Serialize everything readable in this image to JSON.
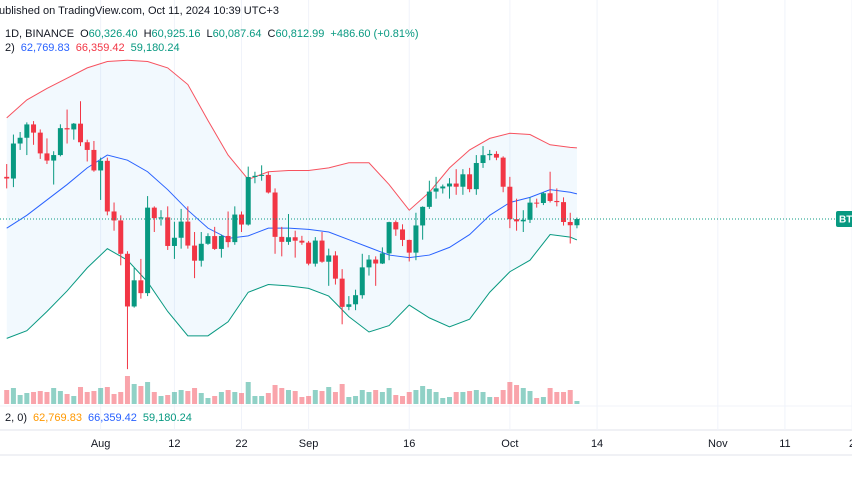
{
  "header": {
    "published": "ublished on TradingView.com, Oct 11, 2024 10:39 UTC+3"
  },
  "legend": {
    "symbol": "1D, BINANCE",
    "ohlc": [
      {
        "label": "O",
        "value": "60,326.40"
      },
      {
        "label": "H",
        "value": "60,925.16"
      },
      {
        "label": "L",
        "value": "60,087.64"
      },
      {
        "label": "C",
        "value": "60,812.99"
      }
    ],
    "change": "+486.60 (+0.81%)",
    "value_color": "#089981"
  },
  "indicator": {
    "params": "2)",
    "values": [
      {
        "text": "62,769.83",
        "color": "#2962ff"
      },
      {
        "text": "66,359.42",
        "color": "#f23645"
      },
      {
        "text": "59,180.24",
        "color": "#089981"
      }
    ]
  },
  "lower_indicator": {
    "params": "2, 0)",
    "values": [
      {
        "text": "62,769.83",
        "color": "#ff9800"
      },
      {
        "text": "66,359.42",
        "color": "#2962ff"
      },
      {
        "text": "59,180.24",
        "color": "#089981"
      }
    ]
  },
  "chart_data": {
    "type": "candlestick",
    "x": [
      "2024-07-18",
      "2024-07-19",
      "2024-07-20",
      "2024-07-21",
      "2024-07-22",
      "2024-07-23",
      "2024-07-24",
      "2024-07-25",
      "2024-07-26",
      "2024-07-27",
      "2024-07-28",
      "2024-07-29",
      "2024-07-30",
      "2024-07-31",
      "2024-08-01",
      "2024-08-02",
      "2024-08-03",
      "2024-08-04",
      "2024-08-05",
      "2024-08-06",
      "2024-08-07",
      "2024-08-08",
      "2024-08-09",
      "2024-08-10",
      "2024-08-11",
      "2024-08-12",
      "2024-08-13",
      "2024-08-14",
      "2024-08-15",
      "2024-08-16",
      "2024-08-17",
      "2024-08-18",
      "2024-08-19",
      "2024-08-20",
      "2024-08-21",
      "2024-08-22",
      "2024-08-23",
      "2024-08-24",
      "2024-08-25",
      "2024-08-26",
      "2024-08-27",
      "2024-08-28",
      "2024-08-29",
      "2024-08-30",
      "2024-08-31",
      "2024-09-01",
      "2024-09-02",
      "2024-09-03",
      "2024-09-04",
      "2024-09-05",
      "2024-09-06",
      "2024-09-07",
      "2024-09-08",
      "2024-09-09",
      "2024-09-10",
      "2024-09-11",
      "2024-09-12",
      "2024-09-13",
      "2024-09-14",
      "2024-09-15",
      "2024-09-16",
      "2024-09-17",
      "2024-09-18",
      "2024-09-19",
      "2024-09-20",
      "2024-09-21",
      "2024-09-22",
      "2024-09-23",
      "2024-09-24",
      "2024-09-25",
      "2024-09-26",
      "2024-09-27",
      "2024-09-28",
      "2024-09-29",
      "2024-09-30",
      "2024-10-01",
      "2024-10-02",
      "2024-10-03",
      "2024-10-04",
      "2024-10-05",
      "2024-10-06",
      "2024-10-07",
      "2024-10-08",
      "2024-10-09",
      "2024-10-10",
      "2024-10-11"
    ],
    "open": [
      64100,
      63970,
      66700,
      67150,
      68190,
      67550,
      65930,
      65370,
      65800,
      67900,
      67800,
      68250,
      66800,
      66200,
      64600,
      65350,
      61400,
      60700,
      58100,
      53990,
      56030,
      55030,
      61700,
      60880,
      60940,
      58710,
      59350,
      60610,
      58740,
      57560,
      58880,
      59480,
      58480,
      59490,
      59010,
      61160,
      60380,
      64090,
      64180,
      64250,
      62880,
      59420,
      59030,
      59390,
      59120,
      58970,
      57330,
      59130,
      57480,
      57970,
      56160,
      53960,
      54160,
      54870,
      57040,
      57650,
      57340,
      58130,
      60570,
      60000,
      59180,
      58190,
      60310,
      61760,
      62950,
      63200,
      63350,
      63580,
      63330,
      64300,
      63140,
      65180,
      65790,
      65890,
      65600,
      63330,
      60800,
      60630,
      60750,
      62090,
      62060,
      62820,
      62220,
      62130,
      60580,
      60326.4
    ],
    "high": [
      65100,
      67400,
      67600,
      68350,
      68450,
      67800,
      67100,
      66100,
      68200,
      69350,
      68300,
      70000,
      67000,
      66900,
      65600,
      65600,
      62100,
      61100,
      58300,
      57000,
      57700,
      62600,
      61800,
      61500,
      61800,
      60600,
      61600,
      61800,
      59800,
      59800,
      59700,
      60200,
      59600,
      61400,
      61800,
      61400,
      64900,
      64500,
      65000,
      64500,
      63200,
      60200,
      61200,
      59900,
      59500,
      59100,
      59400,
      59800,
      58500,
      58300,
      56900,
      54800,
      55300,
      58100,
      58000,
      57900,
      58600,
      60600,
      60700,
      60400,
      59200,
      61300,
      61800,
      63800,
      64100,
      63500,
      64000,
      64700,
      64700,
      64800,
      65800,
      66500,
      66200,
      66100,
      65700,
      64100,
      62400,
      61500,
      62500,
      62400,
      62900,
      64500,
      63200,
      62500,
      61300,
      60925.16
    ],
    "low": [
      63200,
      63300,
      66200,
      65800,
      66600,
      65500,
      65100,
      63500,
      65700,
      66700,
      67000,
      66500,
      65300,
      64500,
      62300,
      61100,
      59900,
      57200,
      49100,
      53900,
      54600,
      54800,
      59800,
      60300,
      58400,
      57700,
      58500,
      58500,
      56200,
      57100,
      58800,
      58400,
      57800,
      58600,
      58800,
      59800,
      60300,
      63600,
      63800,
      62800,
      58100,
      57900,
      58800,
      57800,
      58800,
      57200,
      57100,
      57400,
      55600,
      55700,
      52600,
      53700,
      53700,
      54600,
      56400,
      55600,
      57300,
      57600,
      59500,
      58700,
      57500,
      57600,
      59200,
      61600,
      62400,
      62800,
      62400,
      62700,
      62700,
      62900,
      62700,
      64800,
      65400,
      65400,
      62900,
      60100,
      59900,
      59800,
      60500,
      61700,
      61900,
      62100,
      61800,
      60300,
      58900,
      60087.64
    ],
    "close": [
      63970,
      66700,
      67150,
      68190,
      67550,
      65930,
      65370,
      65800,
      67900,
      67800,
      68250,
      66800,
      66200,
      64600,
      65350,
      61400,
      60700,
      58100,
      53990,
      56030,
      55030,
      61700,
      60880,
      60940,
      58710,
      59350,
      60610,
      58740,
      57560,
      58880,
      59480,
      58480,
      59490,
      59010,
      61160,
      60380,
      64090,
      64180,
      64250,
      62880,
      59420,
      59030,
      59390,
      59120,
      58970,
      57330,
      59130,
      57480,
      57970,
      56160,
      53960,
      54160,
      54870,
      57040,
      57650,
      57340,
      58130,
      60570,
      60000,
      59180,
      58190,
      60310,
      61760,
      62950,
      63200,
      63350,
      63580,
      63330,
      64300,
      63140,
      65180,
      65790,
      65890,
      65600,
      63330,
      60800,
      60630,
      60750,
      62090,
      62060,
      62820,
      62220,
      62130,
      60580,
      60326.4,
      60812.99
    ],
    "volume": [
      14,
      16,
      9,
      11,
      12,
      13,
      12,
      16,
      13,
      10,
      8,
      17,
      12,
      13,
      16,
      17,
      10,
      12,
      28,
      20,
      18,
      22,
      12,
      8,
      9,
      12,
      14,
      13,
      16,
      11,
      6,
      8,
      12,
      14,
      12,
      11,
      22,
      8,
      8,
      11,
      19,
      16,
      14,
      13,
      7,
      8,
      14,
      13,
      17,
      12,
      20,
      7,
      8,
      14,
      12,
      14,
      12,
      16,
      9,
      8,
      12,
      14,
      18,
      15,
      12,
      6,
      7,
      12,
      12,
      13,
      14,
      12,
      7,
      7,
      14,
      22,
      19,
      16,
      13,
      6,
      7,
      16,
      12,
      12,
      14,
      3
    ],
    "vlim": [
      0,
      100
    ],
    "up_color": "#089981",
    "down_color": "#f23645",
    "bollinger": {
      "x": [
        "2024-07-18",
        "2024-07-21",
        "2024-07-24",
        "2024-07-27",
        "2024-07-30",
        "2024-08-02",
        "2024-08-05",
        "2024-08-08",
        "2024-08-11",
        "2024-08-14",
        "2024-08-17",
        "2024-08-20",
        "2024-08-23",
        "2024-08-26",
        "2024-08-29",
        "2024-09-01",
        "2024-09-04",
        "2024-09-07",
        "2024-09-10",
        "2024-09-13",
        "2024-09-16",
        "2024-09-19",
        "2024-09-22",
        "2024-09-25",
        "2024-09-28",
        "2024-10-01",
        "2024-10-04",
        "2024-10-07",
        "2024-10-10",
        "2024-10-11"
      ],
      "upper": [
        68700,
        70100,
        71000,
        71800,
        72600,
        73100,
        73200,
        73100,
        72600,
        71300,
        68500,
        65800,
        63900,
        64500,
        64600,
        64600,
        64800,
        65200,
        65200,
        63500,
        61500,
        62900,
        64800,
        66200,
        67100,
        67500,
        67400,
        66600,
        66400,
        66359.42
      ],
      "basis": [
        60100,
        61100,
        62300,
        63500,
        64800,
        65800,
        65400,
        64500,
        63100,
        61500,
        60100,
        59300,
        59500,
        60100,
        60100,
        60000,
        59800,
        59200,
        58600,
        58000,
        57800,
        58000,
        58600,
        59600,
        61100,
        62100,
        62500,
        63100,
        62900,
        62769.83
      ],
      "lower": [
        51500,
        52100,
        53600,
        55200,
        57000,
        58500,
        57600,
        55900,
        53600,
        51700,
        51700,
        52800,
        55100,
        55700,
        55600,
        55400,
        54800,
        53200,
        52000,
        52500,
        54100,
        53100,
        52400,
        53000,
        55100,
        56700,
        57600,
        59600,
        59400,
        59180.24
      ],
      "upper_color": "#f7525f",
      "basis_color": "#2962ff",
      "lower_color": "#089981",
      "fill": "#2196f3"
    },
    "xlim": [
      "2024-07-17",
      "2024-11-21"
    ],
    "xticks": [
      {
        "value": "2024-08-01",
        "label": "Aug"
      },
      {
        "value": "2024-08-12",
        "label": "12"
      },
      {
        "value": "2024-08-22",
        "label": "22"
      },
      {
        "value": "2024-09-01",
        "label": "Sep"
      },
      {
        "value": "2024-09-16",
        "label": "16"
      },
      {
        "value": "2024-10-01",
        "label": "Oct"
      },
      {
        "value": "2024-10-14",
        "label": "14"
      },
      {
        "value": "2024-11-01",
        "label": "Nov"
      },
      {
        "value": "2024-11-11",
        "label": "11"
      },
      {
        "value": "2024-11-21",
        "label": "2"
      }
    ],
    "ylim": [
      44355,
      77895
    ],
    "last_label": "BT"
  }
}
